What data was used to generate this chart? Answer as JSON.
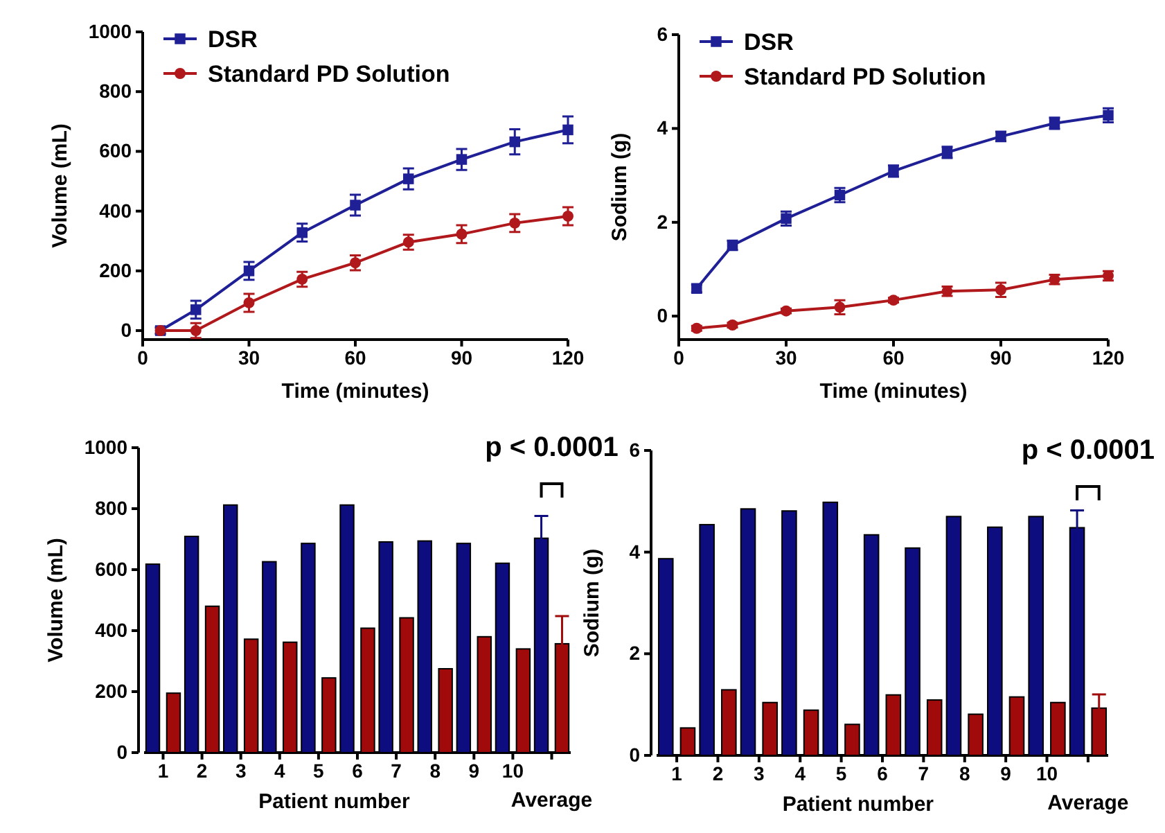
{
  "chart_data": [
    {
      "type": "line",
      "xlabel": "Time (minutes)",
      "ylabel": "Volume (mL)",
      "x": [
        5,
        15,
        30,
        45,
        60,
        75,
        90,
        105,
        120
      ],
      "xlim": [
        0,
        120
      ],
      "xticks": [
        0,
        30,
        60,
        90,
        120
      ],
      "ylim": [
        -30,
        1000
      ],
      "yticks": [
        0,
        200,
        400,
        600,
        800,
        1000
      ],
      "legend": "top left",
      "series": [
        {
          "name": "DSR",
          "color": "#1f1f96",
          "marker": "square",
          "values": [
            0,
            70,
            200,
            328,
            420,
            508,
            573,
            632,
            672
          ],
          "errors": [
            10,
            30,
            30,
            30,
            35,
            35,
            35,
            42,
            45
          ]
        },
        {
          "name": "Standard PD Solution",
          "color": "#b0181b",
          "marker": "circle",
          "values": [
            0,
            0,
            93,
            172,
            227,
            296,
            323,
            360,
            383
          ],
          "errors": [
            null,
            25,
            30,
            25,
            25,
            25,
            30,
            30,
            30
          ]
        }
      ]
    },
    {
      "type": "line",
      "xlabel": "Time (minutes)",
      "ylabel": "Sodium (g)",
      "x": [
        5,
        15,
        30,
        45,
        60,
        75,
        90,
        105,
        120
      ],
      "xlim": [
        0,
        120
      ],
      "xticks": [
        0,
        30,
        60,
        90,
        120
      ],
      "ylim": [
        -0.5,
        6
      ],
      "yticks": [
        0,
        2,
        4,
        6
      ],
      "legend": "top left",
      "series": [
        {
          "name": "DSR",
          "color": "#1f1f96",
          "marker": "square",
          "values": [
            0.59,
            1.51,
            2.08,
            2.58,
            3.09,
            3.49,
            3.83,
            4.11,
            4.28
          ],
          "errors": [
            0.08,
            0.1,
            0.15,
            0.15,
            0.12,
            0.12,
            0.1,
            0.12,
            0.15
          ]
        },
        {
          "name": "Standard PD Solution",
          "color": "#b0181b",
          "marker": "circle",
          "values": [
            -0.26,
            -0.19,
            0.11,
            0.19,
            0.34,
            0.53,
            0.56,
            0.78,
            0.86
          ],
          "errors": [
            0.05,
            0.05,
            0.05,
            0.15,
            0.05,
            0.1,
            0.15,
            0.1,
            0.1
          ]
        }
      ]
    },
    {
      "type": "bar",
      "xlabel": "Patient number",
      "ylabel": "Volume (mL)",
      "categories": [
        "1",
        "2",
        "3",
        "4",
        "5",
        "6",
        "7",
        "8",
        "9",
        "10",
        "Average"
      ],
      "ylim": [
        0,
        1000
      ],
      "yticks": [
        0,
        200,
        400,
        600,
        800,
        1000
      ],
      "annotations": [
        "p < 0.0001"
      ],
      "series": [
        {
          "color": "#0d0d80",
          "values": [
            618,
            709,
            812,
            626,
            686,
            812,
            691,
            694,
            686,
            621,
            703
          ],
          "errors": [
            null,
            null,
            null,
            null,
            null,
            null,
            null,
            null,
            null,
            null,
            73
          ]
        },
        {
          "color": "#a00a0a",
          "values": [
            195,
            480,
            372,
            362,
            245,
            408,
            442,
            275,
            380,
            340,
            357
          ],
          "errors": [
            null,
            null,
            null,
            null,
            null,
            null,
            null,
            null,
            null,
            null,
            91
          ]
        }
      ]
    },
    {
      "type": "bar",
      "xlabel": "Patient number",
      "ylabel": "Sodium (g)",
      "categories": [
        "1",
        "2",
        "3",
        "4",
        "5",
        "6",
        "7",
        "8",
        "9",
        "10",
        "Average"
      ],
      "ylim": [
        0,
        6
      ],
      "yticks": [
        0,
        2,
        4,
        6
      ],
      "annotations": [
        "p < 0.0001"
      ],
      "series": [
        {
          "color": "#0d0d80",
          "values": [
            3.87,
            4.54,
            4.85,
            4.81,
            4.98,
            4.34,
            4.08,
            4.7,
            4.49,
            4.7,
            4.48
          ],
          "errors": [
            null,
            null,
            null,
            null,
            null,
            null,
            null,
            null,
            null,
            null,
            0.34
          ]
        },
        {
          "color": "#a00a0a",
          "values": [
            0.54,
            1.29,
            1.04,
            0.89,
            0.61,
            1.19,
            1.09,
            0.81,
            1.15,
            1.04,
            0.93
          ],
          "errors": [
            null,
            null,
            null,
            null,
            null,
            null,
            null,
            null,
            null,
            null,
            0.27
          ]
        }
      ]
    }
  ]
}
